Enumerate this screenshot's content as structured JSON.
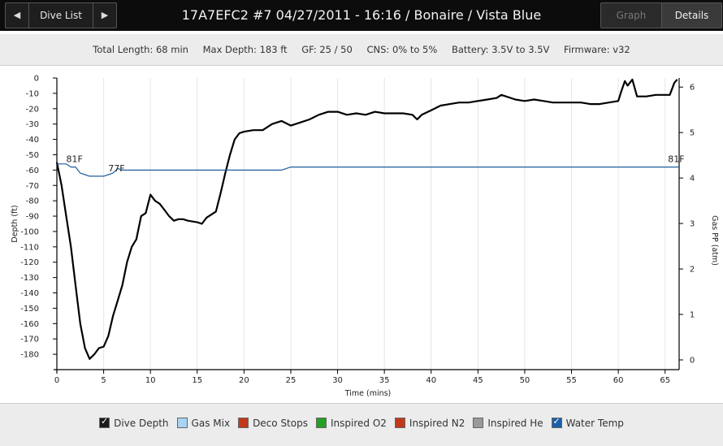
{
  "header": {
    "prev_icon": "◀",
    "next_icon": "▶",
    "dive_list_label": "Dive List",
    "title": "17A7EFC2 #7 04/27/2011 - 16:16  / Bonaire  / Vista Blue",
    "graph_label": "Graph",
    "details_label": "Details"
  },
  "stats": {
    "total_length": "Total Length: 68 min",
    "max_depth": "Max Depth: 183 ft",
    "gf": "GF: 25 / 50",
    "cns": "CNS: 0% to 5%",
    "battery": "Battery: 3.5V to 3.5V",
    "firmware": "Firmware: v32"
  },
  "legend": [
    {
      "label": "Dive Depth",
      "color": "#1a1a1a",
      "checked": true
    },
    {
      "label": "Gas Mix",
      "color": "#a8d4f5",
      "checked": false
    },
    {
      "label": "Deco Stops",
      "color": "#c0391b",
      "checked": false
    },
    {
      "label": "Inspired O2",
      "color": "#24a024",
      "checked": false
    },
    {
      "label": "Inspired N2",
      "color": "#c0391b",
      "checked": false
    },
    {
      "label": "Inspired He",
      "color": "#9a9a9a",
      "checked": false
    },
    {
      "label": "Water Temp",
      "color": "#1a5fa8",
      "checked": true
    }
  ],
  "chart_data": {
    "type": "line",
    "xlabel": "Time (mins)",
    "ylabel": "Depth (ft)",
    "y2label": "Gas PP (atm)",
    "xlim": [
      0,
      66.5
    ],
    "ylim": [
      0,
      -190
    ],
    "y2lim": [
      0,
      6.2
    ],
    "x_ticks": [
      0,
      5,
      10,
      15,
      20,
      25,
      30,
      35,
      40,
      45,
      50,
      55,
      60,
      65
    ],
    "y_ticks": [
      0,
      -10,
      -20,
      -30,
      -40,
      -50,
      -60,
      -70,
      -80,
      -90,
      -100,
      -110,
      -120,
      -130,
      -140,
      -150,
      -160,
      -170,
      -180
    ],
    "y2_ticks": [
      0,
      1,
      2,
      3,
      4,
      5,
      6
    ],
    "vertical_grid": true,
    "colors": {
      "depth": "#000000",
      "temp": "#1f5e9e",
      "grid": "#e6e6e6"
    },
    "temp_labels": [
      {
        "x": 0.3,
        "y": -57,
        "text": "81F"
      },
      {
        "x": 4.8,
        "y": -63,
        "text": "77F"
      },
      {
        "x": 66.2,
        "y": -57,
        "text": "81F"
      }
    ],
    "series": [
      {
        "name": "Dive Depth",
        "kind": "depth",
        "points": [
          [
            0,
            -55
          ],
          [
            0.5,
            -70
          ],
          [
            1,
            -90
          ],
          [
            1.5,
            -110
          ],
          [
            2,
            -135
          ],
          [
            2.5,
            -160
          ],
          [
            3,
            -176
          ],
          [
            3.5,
            -183
          ],
          [
            4,
            -180
          ],
          [
            4.5,
            -176
          ],
          [
            5,
            -175
          ],
          [
            5.5,
            -168
          ],
          [
            6,
            -155
          ],
          [
            6.5,
            -145
          ],
          [
            7,
            -135
          ],
          [
            7.5,
            -120
          ],
          [
            8,
            -110
          ],
          [
            8.5,
            -105
          ],
          [
            9,
            -90
          ],
          [
            9.5,
            -88
          ],
          [
            10,
            -76
          ],
          [
            10.5,
            -80
          ],
          [
            11,
            -82
          ],
          [
            11.5,
            -86
          ],
          [
            12,
            -90
          ],
          [
            12.5,
            -93
          ],
          [
            13,
            -92
          ],
          [
            13.5,
            -92
          ],
          [
            14,
            -93
          ],
          [
            15,
            -94
          ],
          [
            15.5,
            -95
          ],
          [
            16,
            -91
          ],
          [
            17,
            -87
          ],
          [
            17.5,
            -75
          ],
          [
            18,
            -62
          ],
          [
            18.5,
            -50
          ],
          [
            19,
            -40
          ],
          [
            19.5,
            -36
          ],
          [
            20,
            -35
          ],
          [
            21,
            -34
          ],
          [
            22,
            -34
          ],
          [
            23,
            -30
          ],
          [
            24,
            -28
          ],
          [
            25,
            -31
          ],
          [
            26,
            -29
          ],
          [
            27,
            -27
          ],
          [
            28,
            -24
          ],
          [
            29,
            -22
          ],
          [
            30,
            -22
          ],
          [
            31,
            -24
          ],
          [
            32,
            -23
          ],
          [
            33,
            -24
          ],
          [
            34,
            -22
          ],
          [
            35,
            -23
          ],
          [
            36,
            -23
          ],
          [
            37,
            -23
          ],
          [
            38,
            -24
          ],
          [
            38.5,
            -27
          ],
          [
            39,
            -24
          ],
          [
            40,
            -21
          ],
          [
            41,
            -18
          ],
          [
            42,
            -17
          ],
          [
            43,
            -16
          ],
          [
            44,
            -16
          ],
          [
            45,
            -15
          ],
          [
            46,
            -14
          ],
          [
            47,
            -13
          ],
          [
            47.5,
            -11
          ],
          [
            48,
            -12
          ],
          [
            49,
            -14
          ],
          [
            50,
            -15
          ],
          [
            51,
            -14
          ],
          [
            52,
            -15
          ],
          [
            53,
            -16
          ],
          [
            54,
            -16
          ],
          [
            55,
            -16
          ],
          [
            56,
            -16
          ],
          [
            57,
            -17
          ],
          [
            58,
            -17
          ],
          [
            59,
            -16
          ],
          [
            60,
            -15
          ],
          [
            60.3,
            -9
          ],
          [
            60.7,
            -2
          ],
          [
            61,
            -5
          ],
          [
            61.5,
            -1
          ],
          [
            62,
            -12
          ],
          [
            63,
            -12
          ],
          [
            64,
            -11
          ],
          [
            65,
            -11
          ],
          [
            65.5,
            -11
          ],
          [
            66,
            -3
          ],
          [
            66.3,
            -1
          ]
        ]
      },
      {
        "name": "Water Temp",
        "kind": "temp",
        "points": [
          [
            0,
            -56
          ],
          [
            1,
            -56
          ],
          [
            1.5,
            -58
          ],
          [
            2,
            -58
          ],
          [
            2.5,
            -62
          ],
          [
            3,
            -63
          ],
          [
            3.5,
            -64
          ],
          [
            5,
            -64
          ],
          [
            5.5,
            -63
          ],
          [
            6,
            -62
          ],
          [
            6.5,
            -59
          ],
          [
            7,
            -60
          ],
          [
            12,
            -60
          ],
          [
            20,
            -60
          ],
          [
            24,
            -60
          ],
          [
            25,
            -58
          ],
          [
            40,
            -58
          ],
          [
            60,
            -58
          ],
          [
            66.5,
            -58
          ]
        ]
      }
    ]
  }
}
